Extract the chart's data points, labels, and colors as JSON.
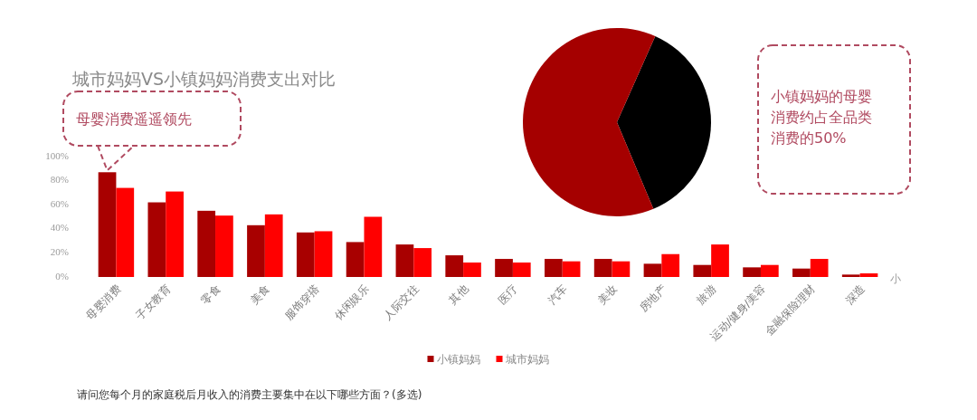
{
  "chart_data": [
    {
      "type": "bar",
      "title": "城市妈妈VS小镇妈妈消费支出对比",
      "categories": [
        "母婴消费",
        "子女教育",
        "零食",
        "美食",
        "服饰穿搭",
        "休闲娱乐",
        "人际交往",
        "其他",
        "医疗",
        "汽车",
        "美妆",
        "房地产",
        "旅游",
        "运动/健身/美容",
        "金融保险理财",
        "深造"
      ],
      "series": [
        {
          "name": "小镇妈妈",
          "color": "#a80000",
          "values": [
            87,
            62,
            55,
            43,
            37,
            29,
            27,
            18,
            15,
            15,
            15,
            11,
            10,
            8,
            7,
            2
          ]
        },
        {
          "name": "城市妈妈",
          "color": "#ff0000",
          "values": [
            74,
            71,
            51,
            52,
            38,
            50,
            24,
            12,
            12,
            13,
            13,
            19,
            27,
            10,
            15,
            3
          ]
        }
      ],
      "ylim": [
        0,
        100
      ],
      "yticks": [
        {
          "value": 0,
          "label": "0%"
        },
        {
          "value": 20,
          "label": "20%"
        },
        {
          "value": 40,
          "label": "40%"
        },
        {
          "value": 60,
          "label": "60%"
        },
        {
          "value": 80,
          "label": "80%"
        },
        {
          "value": 100,
          "label": "100%"
        }
      ],
      "legend": "bottom",
      "annotations": [
        {
          "text": "母婴消费遥遥领先",
          "x": "母婴消费",
          "y": 87
        },
        "请问您每个月的家庭税后月收入的消费主要集中在以下哪些方面？(多选)",
        "小"
      ]
    },
    {
      "type": "pie",
      "categories": [
        null,
        null
      ],
      "values": [
        37,
        63
      ],
      "colors": [
        "#000000",
        "#a50000"
      ],
      "annotations": [
        "小镇妈妈的母婴消费约占全品类消费的50%"
      ]
    }
  ]
}
